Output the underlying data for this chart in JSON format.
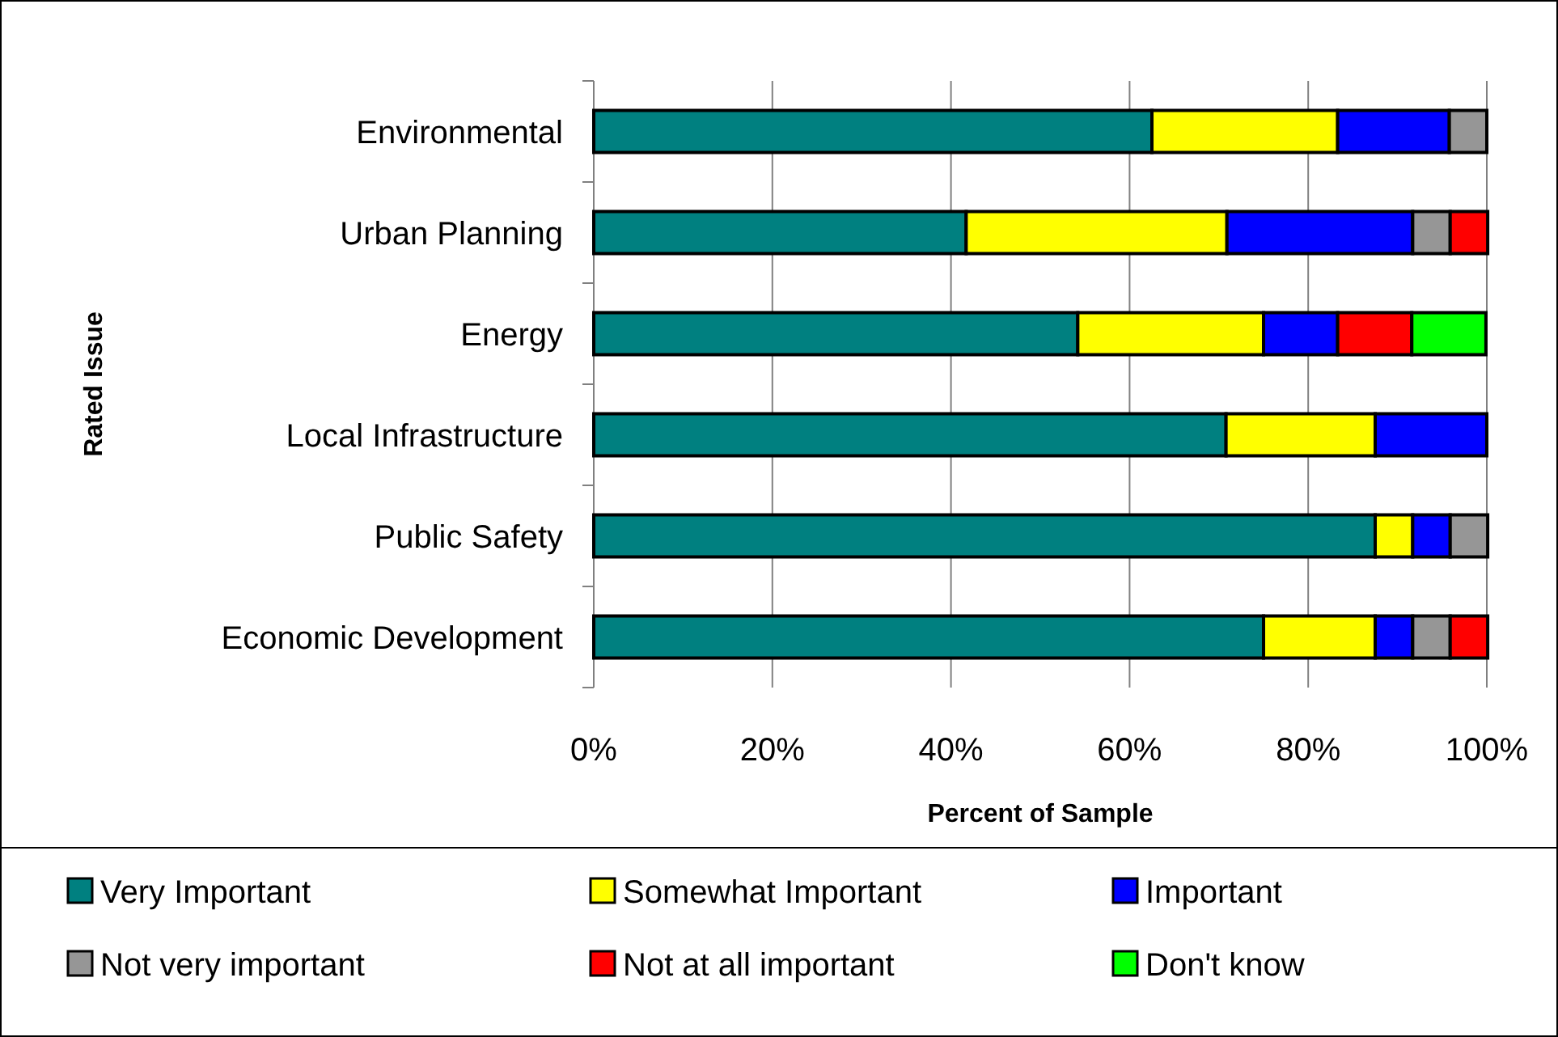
{
  "chart_data": {
    "type": "bar",
    "orientation": "horizontal",
    "stacked": true,
    "categories": [
      "Environmental",
      "Urban Planning",
      "Energy",
      "Local Infrastructure",
      "Public Safety",
      "Economic Development"
    ],
    "series": [
      {
        "name": "Very Important",
        "color": "#008080",
        "values": [
          62.5,
          41.7,
          54.2,
          70.8,
          87.5,
          75
        ]
      },
      {
        "name": "Somewhat Important",
        "color": "#ffff00",
        "values": [
          20.8,
          29.2,
          20.8,
          16.7,
          4.2,
          12.5
        ]
      },
      {
        "name": "Important",
        "color": "#0000ff",
        "values": [
          12.5,
          20.8,
          8.3,
          12.5,
          4.2,
          4.2
        ]
      },
      {
        "name": "Not very important",
        "color": "#969696",
        "values": [
          4.2,
          4.2,
          null,
          null,
          4.2,
          4.2
        ]
      },
      {
        "name": "Not at all important",
        "color": "#ff0000",
        "values": [
          null,
          4.2,
          8.3,
          null,
          null,
          4.2
        ]
      },
      {
        "name": "Don't know",
        "color": "#00ff00",
        "values": [
          null,
          null,
          8.3,
          null,
          null,
          null
        ]
      }
    ],
    "xlim": [
      0,
      100
    ],
    "xticks": [
      {
        "value": 0,
        "label": "0%"
      },
      {
        "value": 20,
        "label": "20%"
      },
      {
        "value": 40,
        "label": "40%"
      },
      {
        "value": 60,
        "label": "60%"
      },
      {
        "value": 80,
        "label": "80%"
      },
      {
        "value": 100,
        "label": "100%"
      }
    ],
    "xlabel": "Percent of Sample",
    "ylabel": "Rated Issue",
    "grid": "x",
    "legend": "bottom"
  }
}
